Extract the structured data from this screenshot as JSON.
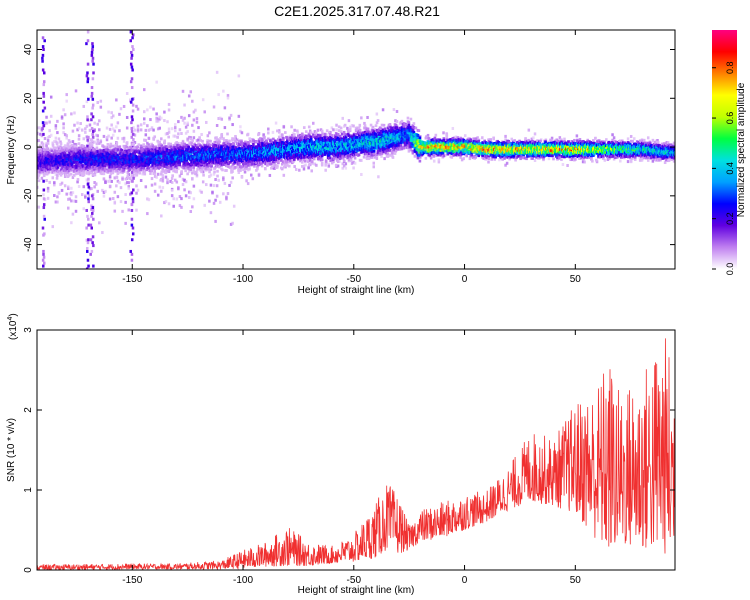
{
  "title": "C2E1.2025.317.07.48.R21",
  "chart_data": [
    {
      "type": "heatmap",
      "xlabel": "Height of straight line (km)",
      "ylabel": "Frequency (Hz)",
      "xlim": [
        -193,
        95
      ],
      "ylim": [
        -50,
        48
      ],
      "xticks": [
        -150,
        -100,
        -50,
        0,
        50
      ],
      "yticks": [
        -40,
        -20,
        0,
        20,
        40
      ],
      "grid": false,
      "colorbar": {
        "label": "Normalized spectral amplitude",
        "range": [
          0.0,
          0.95
        ],
        "ticks": [
          "0.0",
          "0.2",
          "0.4",
          "0.6",
          "0.8"
        ],
        "colors": [
          "#ffffff",
          "#c080f0",
          "#6000e0",
          "#0000ff",
          "#00a0ff",
          "#00e0e0",
          "#00ff40",
          "#c0ff00",
          "#ffff00",
          "#ff8000",
          "#ff0000",
          "#ff0080"
        ]
      },
      "ridge": {
        "x": [
          -193,
          -170,
          -150,
          -130,
          -110,
          -100,
          -90,
          -80,
          -70,
          -60,
          -50,
          -40,
          -30,
          -25,
          -20,
          -10,
          0,
          10,
          20,
          30,
          40,
          50,
          60,
          70,
          80,
          90,
          95
        ],
        "frequency": [
          -6,
          -5,
          -5,
          -4,
          -3,
          -3,
          -2,
          -1,
          0,
          0,
          1,
          2,
          4,
          5,
          0,
          0,
          0,
          -1,
          -1,
          -1,
          -1,
          -1,
          -1,
          -1,
          -1,
          -2,
          -2
        ],
        "peak_amplitude": [
          0.25,
          0.3,
          0.3,
          0.35,
          0.35,
          0.35,
          0.4,
          0.4,
          0.45,
          0.45,
          0.45,
          0.5,
          0.45,
          0.4,
          0.85,
          0.85,
          0.85,
          0.85,
          0.85,
          0.8,
          0.85,
          0.85,
          0.7,
          0.6,
          0.55,
          0.5,
          0.45
        ]
      },
      "vertical_streaks_x": [
        -190,
        -170,
        -168,
        -150
      ]
    },
    {
      "type": "line",
      "xlabel": "Height of straight line (km)",
      "ylabel": "SNR (10 * v/v)",
      "scale_label": "(x10",
      "scale_exponent": "4",
      "scale_suffix": ")",
      "xlim": [
        -193,
        95
      ],
      "ylim": [
        0,
        3.0
      ],
      "xticks": [
        -150,
        -100,
        -50,
        0,
        50
      ],
      "yticks": [
        0,
        1,
        2,
        3
      ],
      "color": "#f03030",
      "grid": false,
      "envelope": {
        "x": [
          -193,
          -150,
          -130,
          -110,
          -100,
          -90,
          -80,
          -70,
          -60,
          -50,
          -40,
          -35,
          -30,
          -25,
          -20,
          -10,
          0,
          10,
          20,
          30,
          40,
          50,
          60,
          65,
          70,
          80,
          90,
          95
        ],
        "upper": [
          0.07,
          0.08,
          0.08,
          0.12,
          0.25,
          0.35,
          0.55,
          0.35,
          0.3,
          0.45,
          0.85,
          1.1,
          0.95,
          0.55,
          0.75,
          0.85,
          0.95,
          1.0,
          1.3,
          1.75,
          1.65,
          2.1,
          2.35,
          2.7,
          2.25,
          2.5,
          3.0,
          2.55
        ],
        "lower": [
          0.0,
          0.01,
          0.01,
          0.01,
          0.02,
          0.04,
          0.05,
          0.05,
          0.08,
          0.1,
          0.15,
          0.25,
          0.2,
          0.25,
          0.35,
          0.4,
          0.5,
          0.6,
          0.75,
          0.85,
          0.8,
          0.7,
          0.35,
          0.2,
          0.3,
          0.25,
          0.2,
          0.1
        ]
      }
    }
  ]
}
